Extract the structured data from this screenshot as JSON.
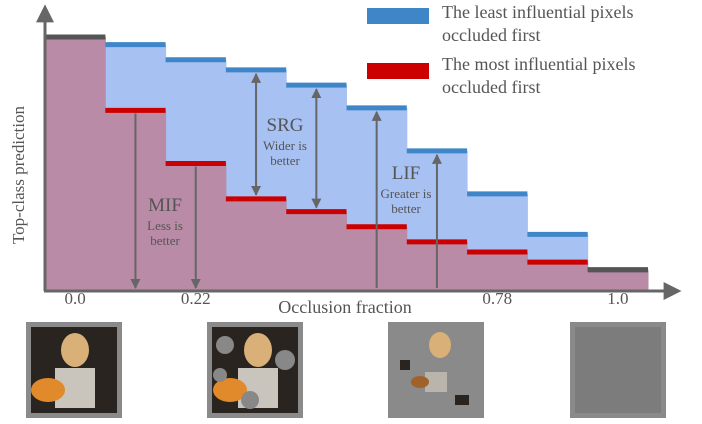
{
  "chart_data": {
    "type": "step",
    "xlabel": "Occlusion fraction",
    "ylabel": "Top-class prediction",
    "categories": [
      "0.0",
      null,
      "0.22",
      null,
      null,
      null,
      null,
      "0.78",
      null,
      "1.0"
    ],
    "ylim": [
      0,
      1
    ],
    "series": [
      {
        "name": "The least influential pixels occluded first",
        "color": "#3f86c8",
        "fill": "#a7c1f3",
        "values": [
          1.0,
          0.97,
          0.91,
          0.87,
          0.81,
          0.72,
          0.55,
          0.38,
          0.22,
          0.08
        ]
      },
      {
        "name": "The most influential pixels occluded first",
        "color": "#cc0000",
        "fill": "#b98ba6",
        "values": [
          1.0,
          0.71,
          0.5,
          0.36,
          0.31,
          0.25,
          0.19,
          0.15,
          0.11,
          0.08
        ]
      }
    ],
    "annotations": [
      {
        "title": "SRG",
        "text": "Wider is better"
      },
      {
        "title": "MIF",
        "text": "Less is better"
      },
      {
        "title": "LIF",
        "text": "Greater is better"
      }
    ]
  }
}
